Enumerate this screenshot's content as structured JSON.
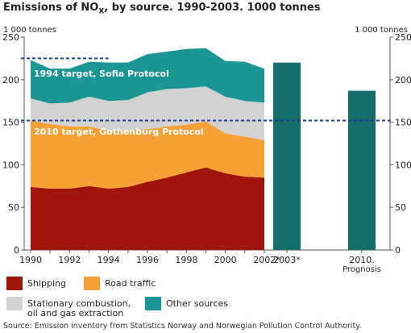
{
  "header": {
    "title_prefix": "Emissions of NO",
    "title_sub": "X",
    "title_suffix": ", by source. 1990-2003. 1000 tonnes"
  },
  "footer": {
    "source": "Source: Emission inventory from Statistics Norway and Norwegian Pollution Control Authority."
  },
  "colors": {
    "shipping": "#a01409",
    "road_traffic": "#f7a035",
    "stationary": "#d2d2d2",
    "other_sources": "#1a9696",
    "bars": "#156e6c",
    "target_line": "#1d3f8f"
  },
  "chart_data": {
    "type": "area",
    "unit_left": "1 000 tonnes",
    "unit_right": "1 000 tonnes",
    "ylim": [
      0,
      250
    ],
    "yticks": [
      0,
      50,
      100,
      150,
      200,
      250
    ],
    "grid": false,
    "legend_position": "bottom",
    "x": [
      1990,
      1991,
      1992,
      1993,
      1994,
      1995,
      1996,
      1997,
      1998,
      1999,
      2000,
      2001,
      2002
    ],
    "x_tick_labels": [
      "1990",
      "1992",
      "1994",
      "1996",
      "1998",
      "2000",
      "2002*"
    ],
    "series": [
      {
        "name": "Shipping",
        "key": "shipping",
        "values": [
          74,
          72,
          72,
          75,
          72,
          74,
          80,
          85,
          91,
          97,
          90,
          86,
          85
        ]
      },
      {
        "name": "Road traffic",
        "key": "road_traffic",
        "values": [
          78,
          76,
          73,
          70,
          68,
          66,
          62,
          60,
          56,
          54,
          47,
          47,
          44
        ]
      },
      {
        "name": "Stationary combustion,\noil and gas extraction",
        "key": "stationary",
        "values": [
          26,
          24,
          28,
          35,
          35,
          36,
          43,
          44,
          43,
          41,
          43,
          42,
          44
        ]
      },
      {
        "name": "Other sources",
        "key": "other_sources",
        "values": [
          45,
          41,
          40,
          41,
          45,
          44,
          45,
          44,
          46,
          45,
          42,
          46,
          40
        ]
      }
    ],
    "totals": [
      223,
      213,
      213,
      221,
      220,
      220,
      230,
      233,
      236,
      237,
      222,
      221,
      213
    ],
    "bars": [
      {
        "label": "2003*",
        "value": 220
      },
      {
        "label": "2010.\nPrognosis",
        "value": 187
      }
    ],
    "targets": [
      {
        "label": "1994 target, Sofia Protocol",
        "value": 225,
        "x_from": 1990,
        "x_to": 1994
      },
      {
        "label": "2010 target, Gothenburg Protocol",
        "value": 152,
        "x_from": 1990,
        "x_to": "end"
      }
    ]
  }
}
